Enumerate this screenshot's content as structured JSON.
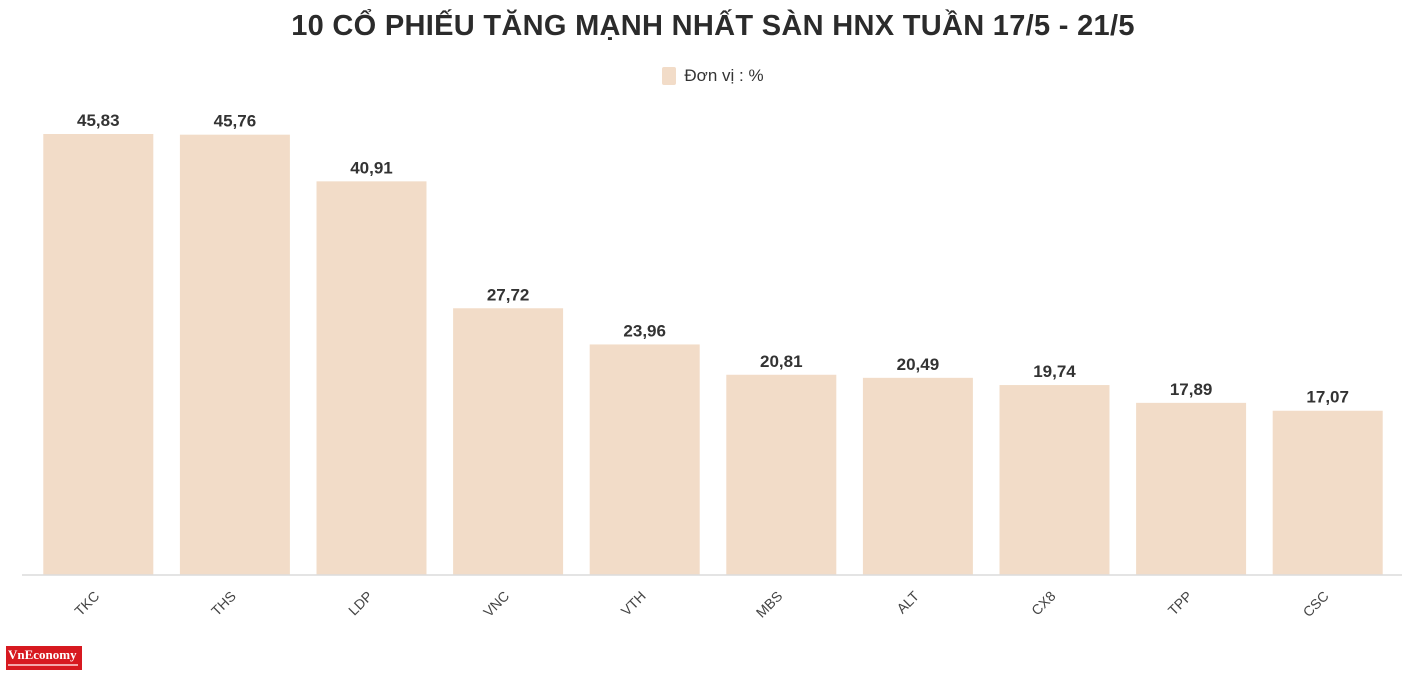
{
  "chart_data": {
    "type": "bar",
    "title": "10 CỔ PHIẾU TĂNG MẠNH NHẤT SÀN HNX TUẦN 17/5 - 21/5",
    "legend": {
      "label": "Đơn vị : %",
      "position": "top-center"
    },
    "categories": [
      "TKC",
      "THS",
      "LDP",
      "VNC",
      "VTH",
      "MBS",
      "ALT",
      "CX8",
      "TPP",
      "CSC"
    ],
    "values": [
      45.83,
      45.76,
      40.91,
      27.72,
      23.96,
      20.81,
      20.49,
      19.74,
      17.89,
      17.07
    ],
    "value_labels": [
      "45,83",
      "45,76",
      "40,91",
      "27,72",
      "23,96",
      "20,81",
      "20,49",
      "19,74",
      "17,89",
      "17,07"
    ],
    "ylim": [
      0,
      45.83
    ],
    "grid": false,
    "bar_color": "#f2dcc8",
    "label_color": "#333333"
  },
  "branding": {
    "logo_text": "VnEconomy",
    "logo_color": "#d71920"
  }
}
